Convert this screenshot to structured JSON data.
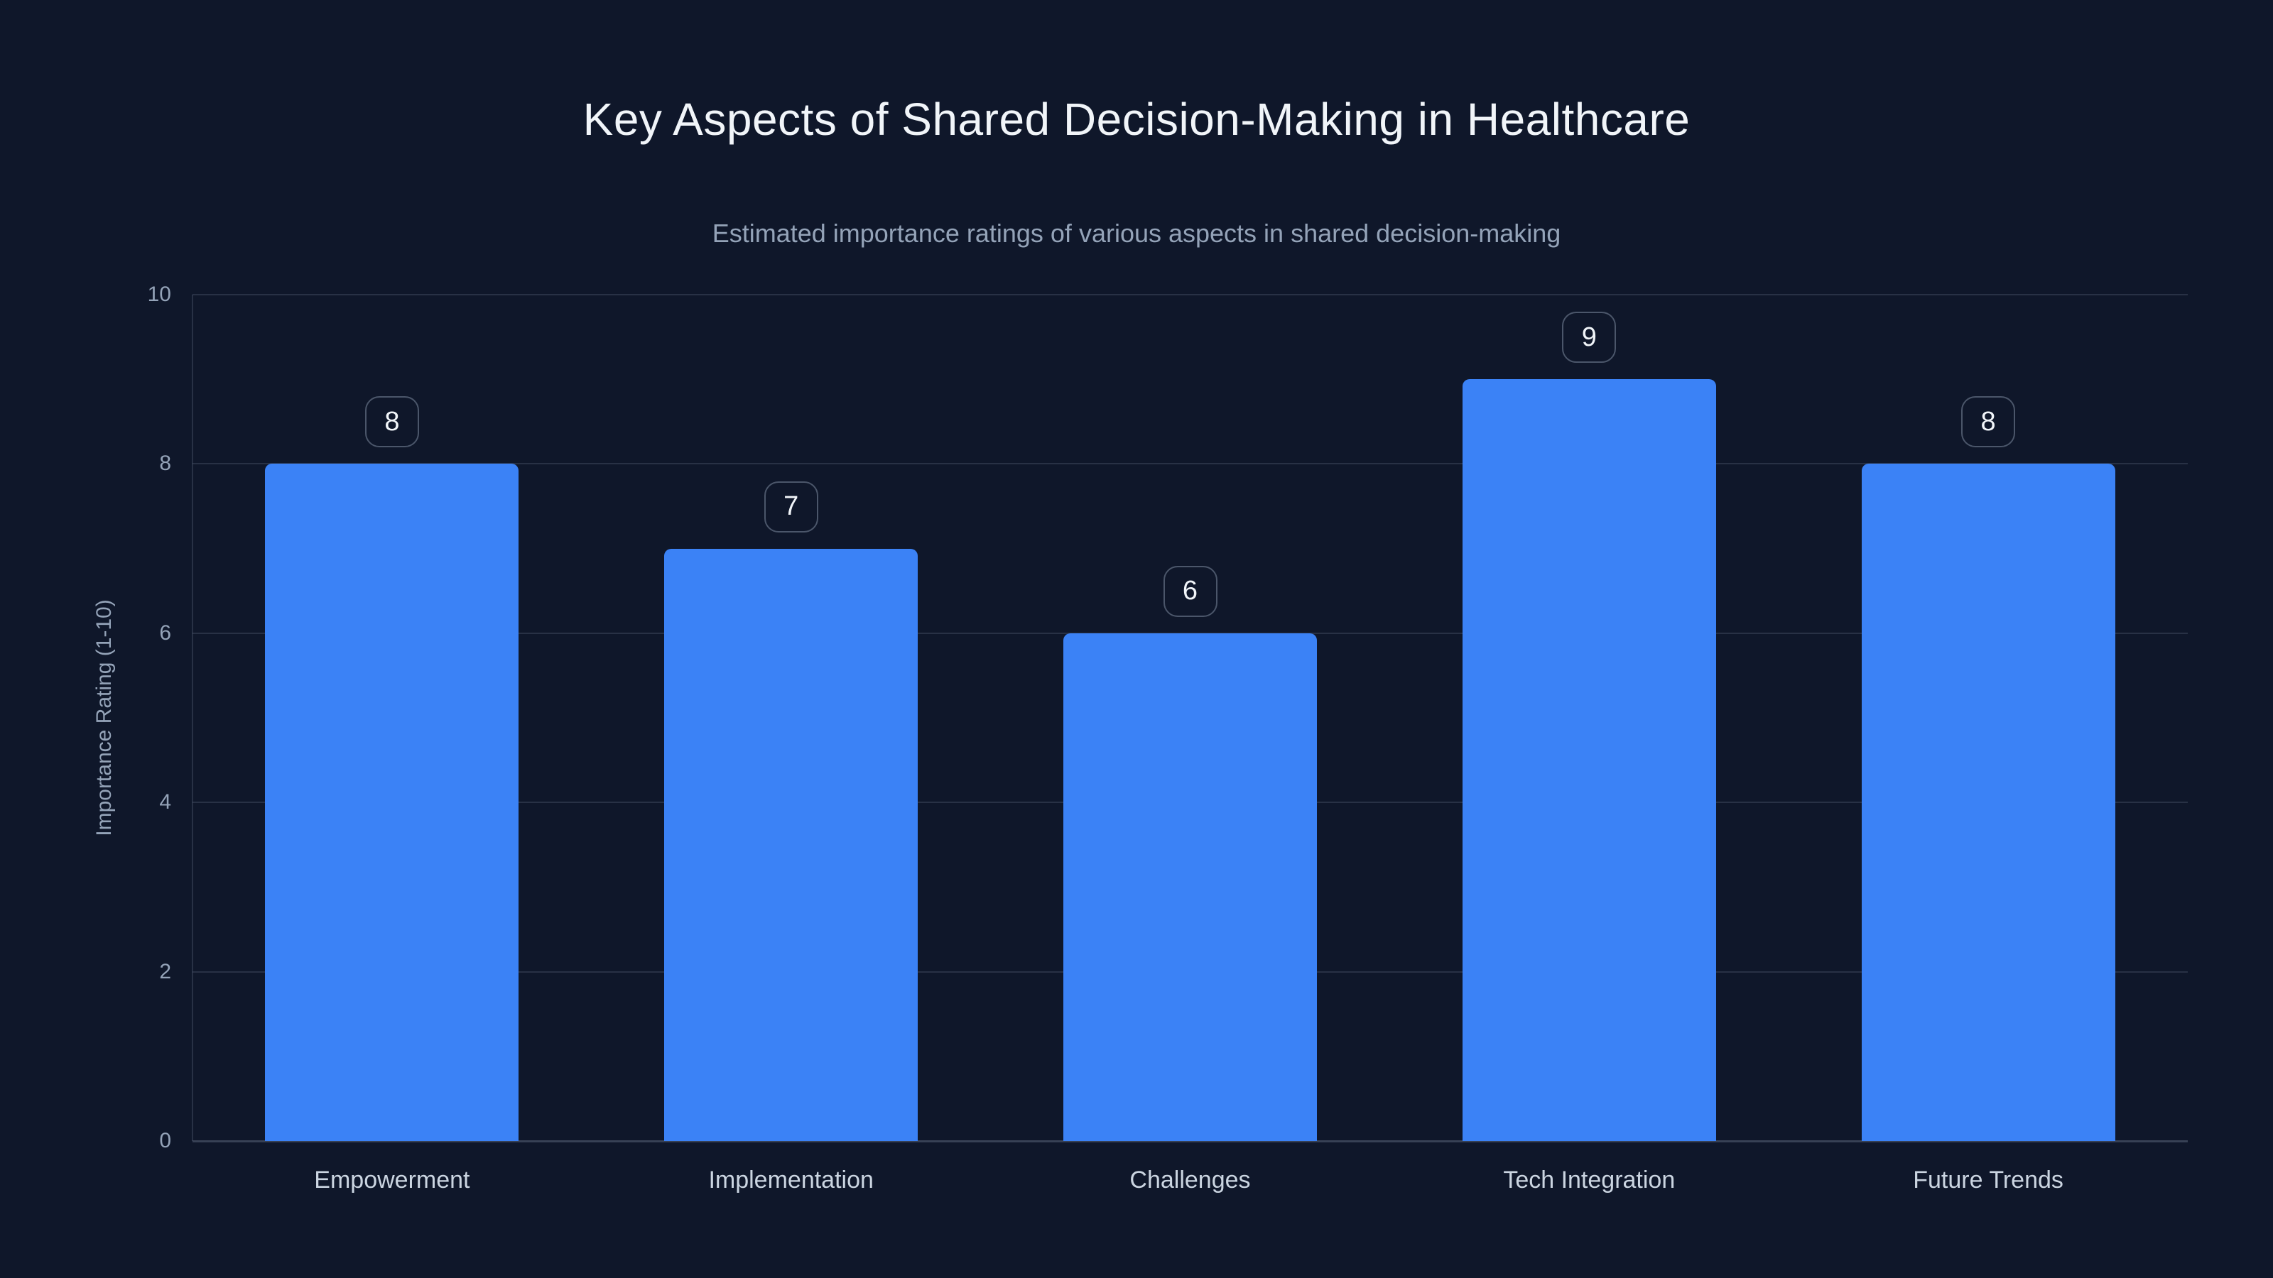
{
  "chart_data": {
    "type": "bar",
    "title": "Key Aspects of Shared Decision-Making in Healthcare",
    "subtitle": "Estimated importance ratings of various aspects in shared decision-making",
    "categories": [
      "Empowerment",
      "Implementation",
      "Challenges",
      "Tech Integration",
      "Future Trends"
    ],
    "values": [
      8,
      7,
      6,
      9,
      8
    ],
    "data_labels": [
      "8",
      "7",
      "6",
      "9",
      "8"
    ],
    "xlabel": "",
    "ylabel": "Importance Rating (1-10)",
    "ylim": [
      0,
      10
    ],
    "yticks": [
      0,
      2,
      4,
      6,
      8,
      10
    ],
    "grid": "horizontal",
    "legend": "none",
    "colors": {
      "background": "#0f172a",
      "bar": "#3b82f6",
      "title": "#f1f5f9",
      "subtitle": "#94a3b8",
      "tick": "#94a3b8",
      "category": "#cbd5e1",
      "gridline": "#94a3b830",
      "baseline": "#94a3b84d",
      "badge_border": "#94a3b873",
      "badge_text": "#f1f5f9"
    }
  }
}
